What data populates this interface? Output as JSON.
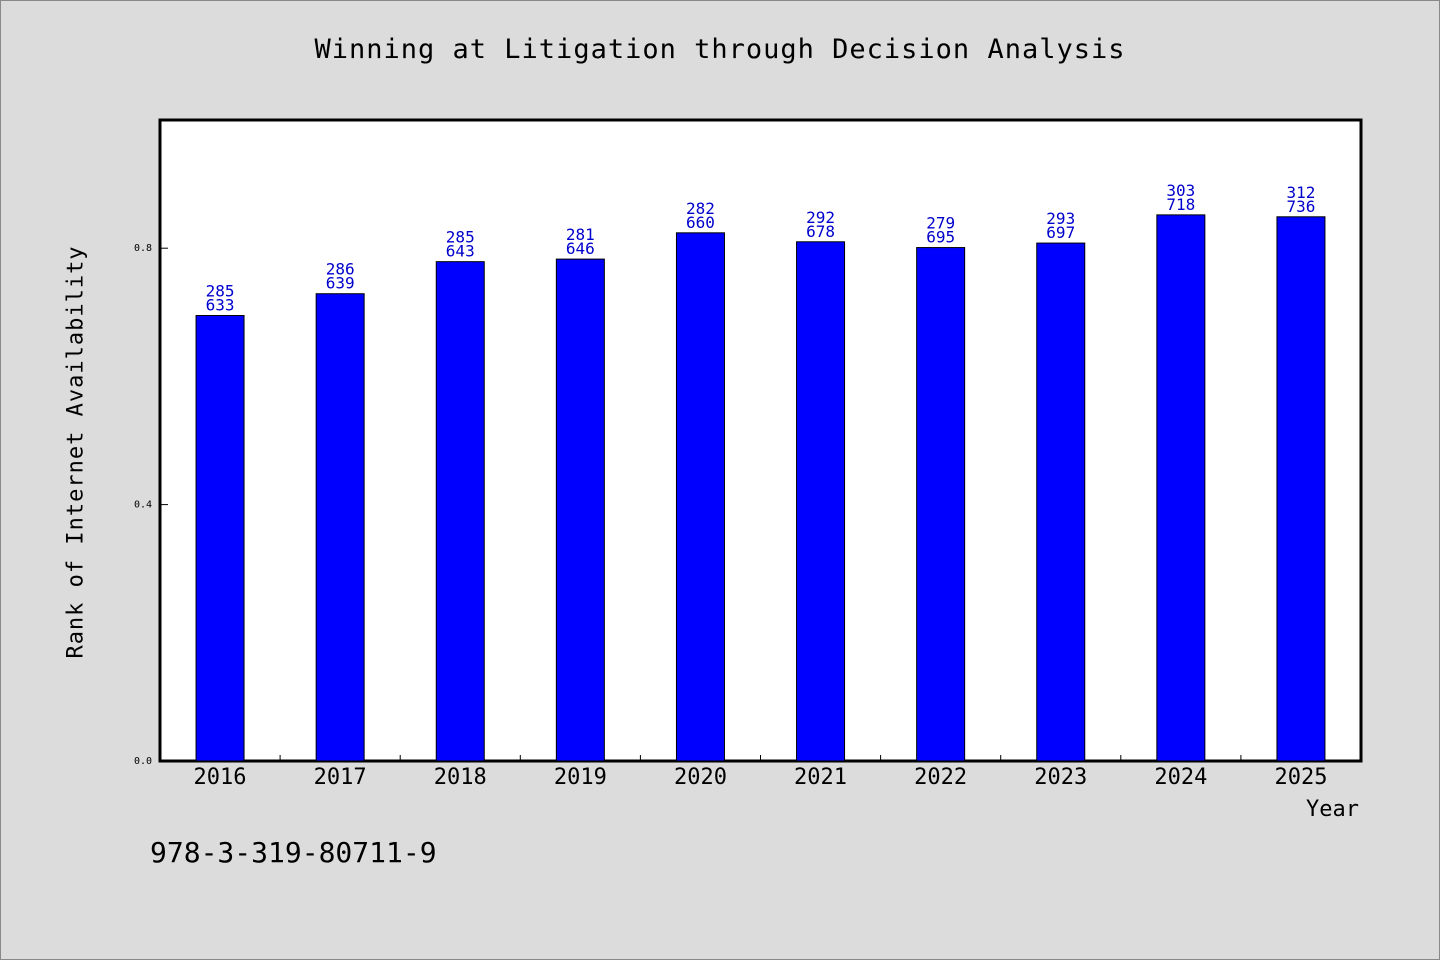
{
  "chart_data": {
    "type": "bar",
    "title": "Winning at Litigation through Decision Analysis",
    "xlabel": "Year",
    "ylabel": "Rank of Internet Availability",
    "ylim": [
      0,
      1.0
    ],
    "yticks": [
      "0.0",
      "0.4",
      "0.8"
    ],
    "categories": [
      "2016",
      "2017",
      "2018",
      "2019",
      "2020",
      "2021",
      "2022",
      "2023",
      "2024",
      "2025"
    ],
    "values": [
      0.695,
      0.729,
      0.779,
      0.783,
      0.824,
      0.81,
      0.801,
      0.808,
      0.852,
      0.849
    ],
    "labels_top": [
      "285",
      "286",
      "285",
      "281",
      "282",
      "292",
      "279",
      "293",
      "303",
      "312"
    ],
    "labels_bottom": [
      "633",
      "639",
      "643",
      "646",
      "660",
      "678",
      "695",
      "697",
      "718",
      "736"
    ],
    "bar_color": "#0000ff",
    "label_color": "#0000cc",
    "grid": false
  },
  "footer": {
    "isbn": "978-3-319-80711-9"
  }
}
